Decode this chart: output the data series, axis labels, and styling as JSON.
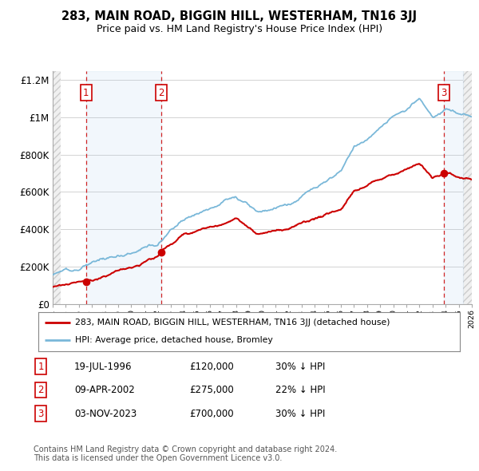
{
  "title": "283, MAIN ROAD, BIGGIN HILL, WESTERHAM, TN16 3JJ",
  "subtitle": "Price paid vs. HM Land Registry's House Price Index (HPI)",
  "transactions": [
    {
      "date": 1996.54,
      "price": 120000,
      "label": "1"
    },
    {
      "date": 2002.27,
      "price": 275000,
      "label": "2"
    },
    {
      "date": 2023.84,
      "price": 700000,
      "label": "3"
    }
  ],
  "vline_dates": [
    1996.54,
    2002.27,
    2023.84
  ],
  "xmin": 1994,
  "xmax": 2026,
  "ymin": 0,
  "ymax": 1250000,
  "yticks": [
    0,
    200000,
    400000,
    600000,
    800000,
    1000000,
    1200000
  ],
  "ytick_labels": [
    "£0",
    "£200K",
    "£400K",
    "£600K",
    "£800K",
    "£1M",
    "£1.2M"
  ],
  "hpi_color": "#7ab8d9",
  "price_color": "#cc0000",
  "shade_color": "#ddeeff",
  "legend_entries": [
    "283, MAIN ROAD, BIGGIN HILL, WESTERHAM, TN16 3JJ (detached house)",
    "HPI: Average price, detached house, Bromley"
  ],
  "table_rows": [
    [
      "1",
      "19-JUL-1996",
      "£120,000",
      "30% ↓ HPI"
    ],
    [
      "2",
      "09-APR-2002",
      "£275,000",
      "22% ↓ HPI"
    ],
    [
      "3",
      "03-NOV-2023",
      "£700,000",
      "30% ↓ HPI"
    ]
  ],
  "footnote": "Contains HM Land Registry data © Crown copyright and database right 2024.\nThis data is licensed under the Open Government Licence v3.0."
}
